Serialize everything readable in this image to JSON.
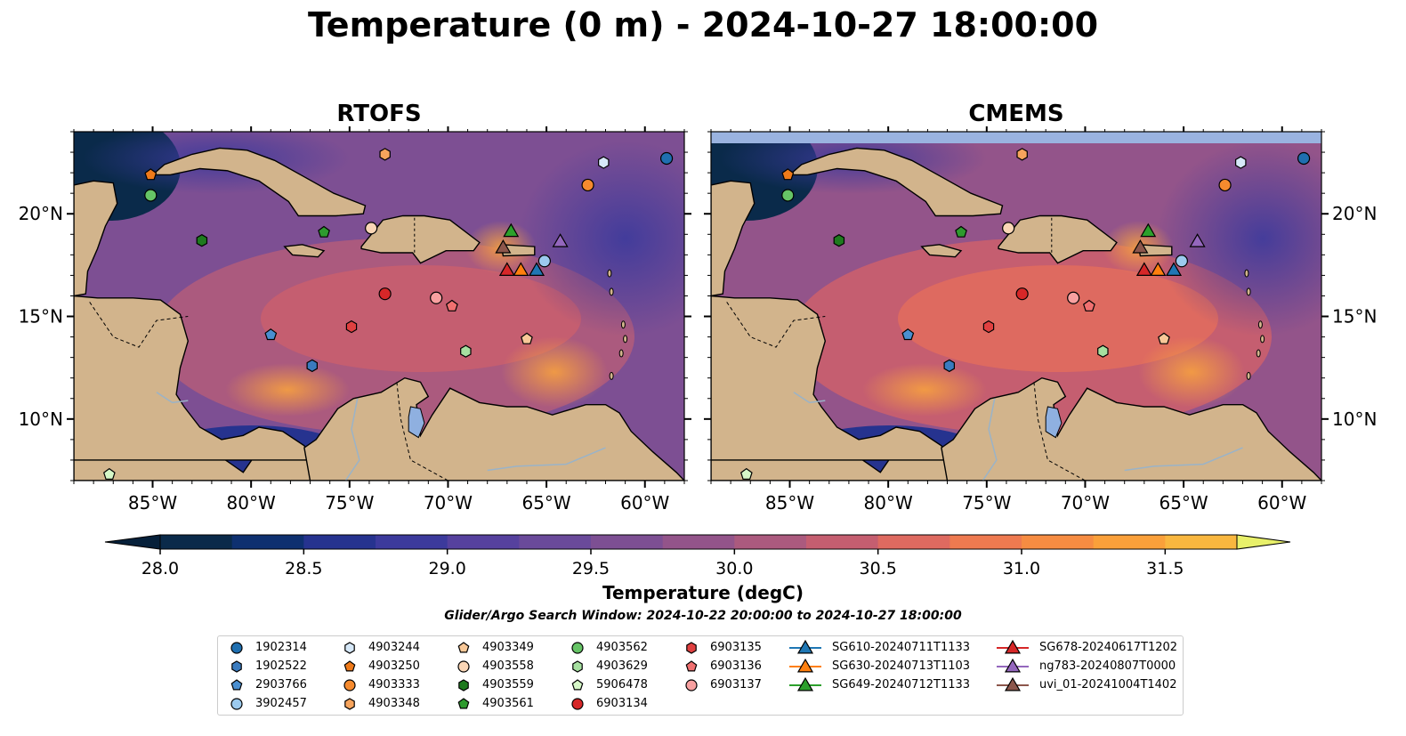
{
  "title": "Temperature (0 m) - 2024-10-27 18:00:00",
  "panels": [
    {
      "name": "RTOFS"
    },
    {
      "name": "CMEMS"
    }
  ],
  "map": {
    "lon_range": [
      -89.0,
      -58.0
    ],
    "lat_range": [
      7.0,
      24.0
    ],
    "lon_ticks": [
      {
        "value": -85,
        "label": "85°W"
      },
      {
        "value": -80,
        "label": "80°W"
      },
      {
        "value": -75,
        "label": "75°W"
      },
      {
        "value": -70,
        "label": "70°W"
      },
      {
        "value": -65,
        "label": "65°W"
      },
      {
        "value": -60,
        "label": "60°W"
      }
    ],
    "lat_ticks": [
      {
        "value": 10,
        "label": "10°N"
      },
      {
        "value": 15,
        "label": "15°N"
      },
      {
        "value": 20,
        "label": "20°N"
      }
    ],
    "land_color": "#d2b48c",
    "lake_color": "#8fb0e0",
    "nodata_color": "#9ab3e0"
  },
  "colorbar": {
    "title": "Temperature (degC)",
    "min": 28.0,
    "max": 31.75,
    "step": 0.25,
    "ticks": [
      {
        "value": 28.0,
        "label": "28.0"
      },
      {
        "value": 28.5,
        "label": "28.5"
      },
      {
        "value": 29.0,
        "label": "29.0"
      },
      {
        "value": 29.5,
        "label": "29.5"
      },
      {
        "value": 30.0,
        "label": "30.0"
      },
      {
        "value": 30.5,
        "label": "30.5"
      },
      {
        "value": 31.0,
        "label": "31.0"
      },
      {
        "value": 31.5,
        "label": "31.5"
      }
    ],
    "colors": [
      "#0a2a4a",
      "#0e3070",
      "#26338f",
      "#3c3a9c",
      "#56419e",
      "#6a4a9a",
      "#7d4f93",
      "#93548a",
      "#ab5a7e",
      "#c55e70",
      "#de6a60",
      "#ee7a50",
      "#f68c42",
      "#faa03a",
      "#f9b73f",
      "#f3d24e",
      "#e8f06a"
    ],
    "under_color": "#06203a",
    "over_color": "#e8f06a"
  },
  "search_window": "Glider/Argo Search Window: 2024-10-22 20:00:00 to 2024-10-27 18:00:00",
  "platforms": [
    {
      "id": "1902314",
      "marker": "circle",
      "color": "#1f6fb0",
      "lon": -58.9,
      "lat": 22.7
    },
    {
      "id": "1902522",
      "marker": "hexagon",
      "color": "#3a7bbf",
      "lon": -100,
      "lat": 0
    },
    {
      "id": "2903766",
      "marker": "pentagon",
      "color": "#4a8fd0",
      "lon": -79.0,
      "lat": 14.1
    },
    {
      "id": "3902457",
      "marker": "circle",
      "color": "#9ccaee",
      "lon": -65.1,
      "lat": 17.7
    },
    {
      "id": "4903244",
      "marker": "hexagon",
      "color": "#d6e8f8",
      "lon": -62.1,
      "lat": 22.5
    },
    {
      "id": "4903250",
      "marker": "pentagon",
      "color": "#ef7a1a",
      "lon": -85.1,
      "lat": 21.9
    },
    {
      "id": "4903333",
      "marker": "circle",
      "color": "#f58a2e",
      "lon": -62.9,
      "lat": 21.4
    },
    {
      "id": "4903348",
      "marker": "hexagon",
      "color": "#f7a45c",
      "lon": -73.2,
      "lat": 22.9
    },
    {
      "id": "4903349",
      "marker": "pentagon",
      "color": "#f8c898",
      "lon": -66.0,
      "lat": 13.9
    },
    {
      "id": "4903558",
      "marker": "circle",
      "color": "#fad6b6",
      "lon": -73.9,
      "lat": 19.3
    },
    {
      "id": "4903559",
      "marker": "hexagon",
      "color": "#1e7a1e",
      "lon": -100,
      "lat": 0
    },
    {
      "id": "4903561",
      "marker": "pentagon",
      "color": "#2e9a2e",
      "lon": -76.3,
      "lat": 19.1
    },
    {
      "id": "4903562",
      "marker": "circle",
      "color": "#66c466",
      "lon": -85.1,
      "lat": 20.9
    },
    {
      "id": "4903629",
      "marker": "hexagon",
      "color": "#a6e0a0",
      "lon": -69.1,
      "lat": 13.3
    },
    {
      "id": "5906478",
      "marker": "pentagon",
      "color": "#d6f8c8",
      "lon": -87.2,
      "lat": 7.3
    },
    {
      "id": "6903134",
      "marker": "circle",
      "color": "#d62728",
      "lon": -73.2,
      "lat": 16.1
    },
    {
      "id": "6903135",
      "marker": "hexagon",
      "color": "#e04040",
      "lon": -74.9,
      "lat": 14.5
    },
    {
      "id": "6903136",
      "marker": "pentagon",
      "color": "#f07070",
      "lon": -69.8,
      "lat": 15.5
    },
    {
      "id": "6903137",
      "marker": "circle",
      "color": "#f8a0a0",
      "lon": -70.6,
      "lat": 15.9
    }
  ],
  "extra_platforms": [
    {
      "marker": "hexagon",
      "color": "#1e7a1e",
      "lon": -82.5,
      "lat": 18.7
    },
    {
      "marker": "hexagon",
      "color": "#3a7bbf",
      "lon": -76.9,
      "lat": 12.6
    }
  ],
  "gliders": [
    {
      "id": "SG610-20240711T1133",
      "color": "#1f77b4",
      "lon": -65.5,
      "lat": 17.3
    },
    {
      "id": "SG630-20240713T1103",
      "color": "#ff7f0e",
      "lon": -66.3,
      "lat": 17.3
    },
    {
      "id": "SG649-20240712T1133",
      "color": "#2ca02c",
      "lon": -66.8,
      "lat": 19.2
    },
    {
      "id": "SG678-20240617T1202",
      "color": "#d62728",
      "lon": -67.0,
      "lat": 17.3
    },
    {
      "id": "ng783-20240807T0000",
      "color": "#9467bd",
      "lon": -64.3,
      "lat": 18.7
    },
    {
      "id": "uvi_01-20241004T1402",
      "color": "#8c564b",
      "lon": -67.2,
      "lat": 18.4
    }
  ]
}
